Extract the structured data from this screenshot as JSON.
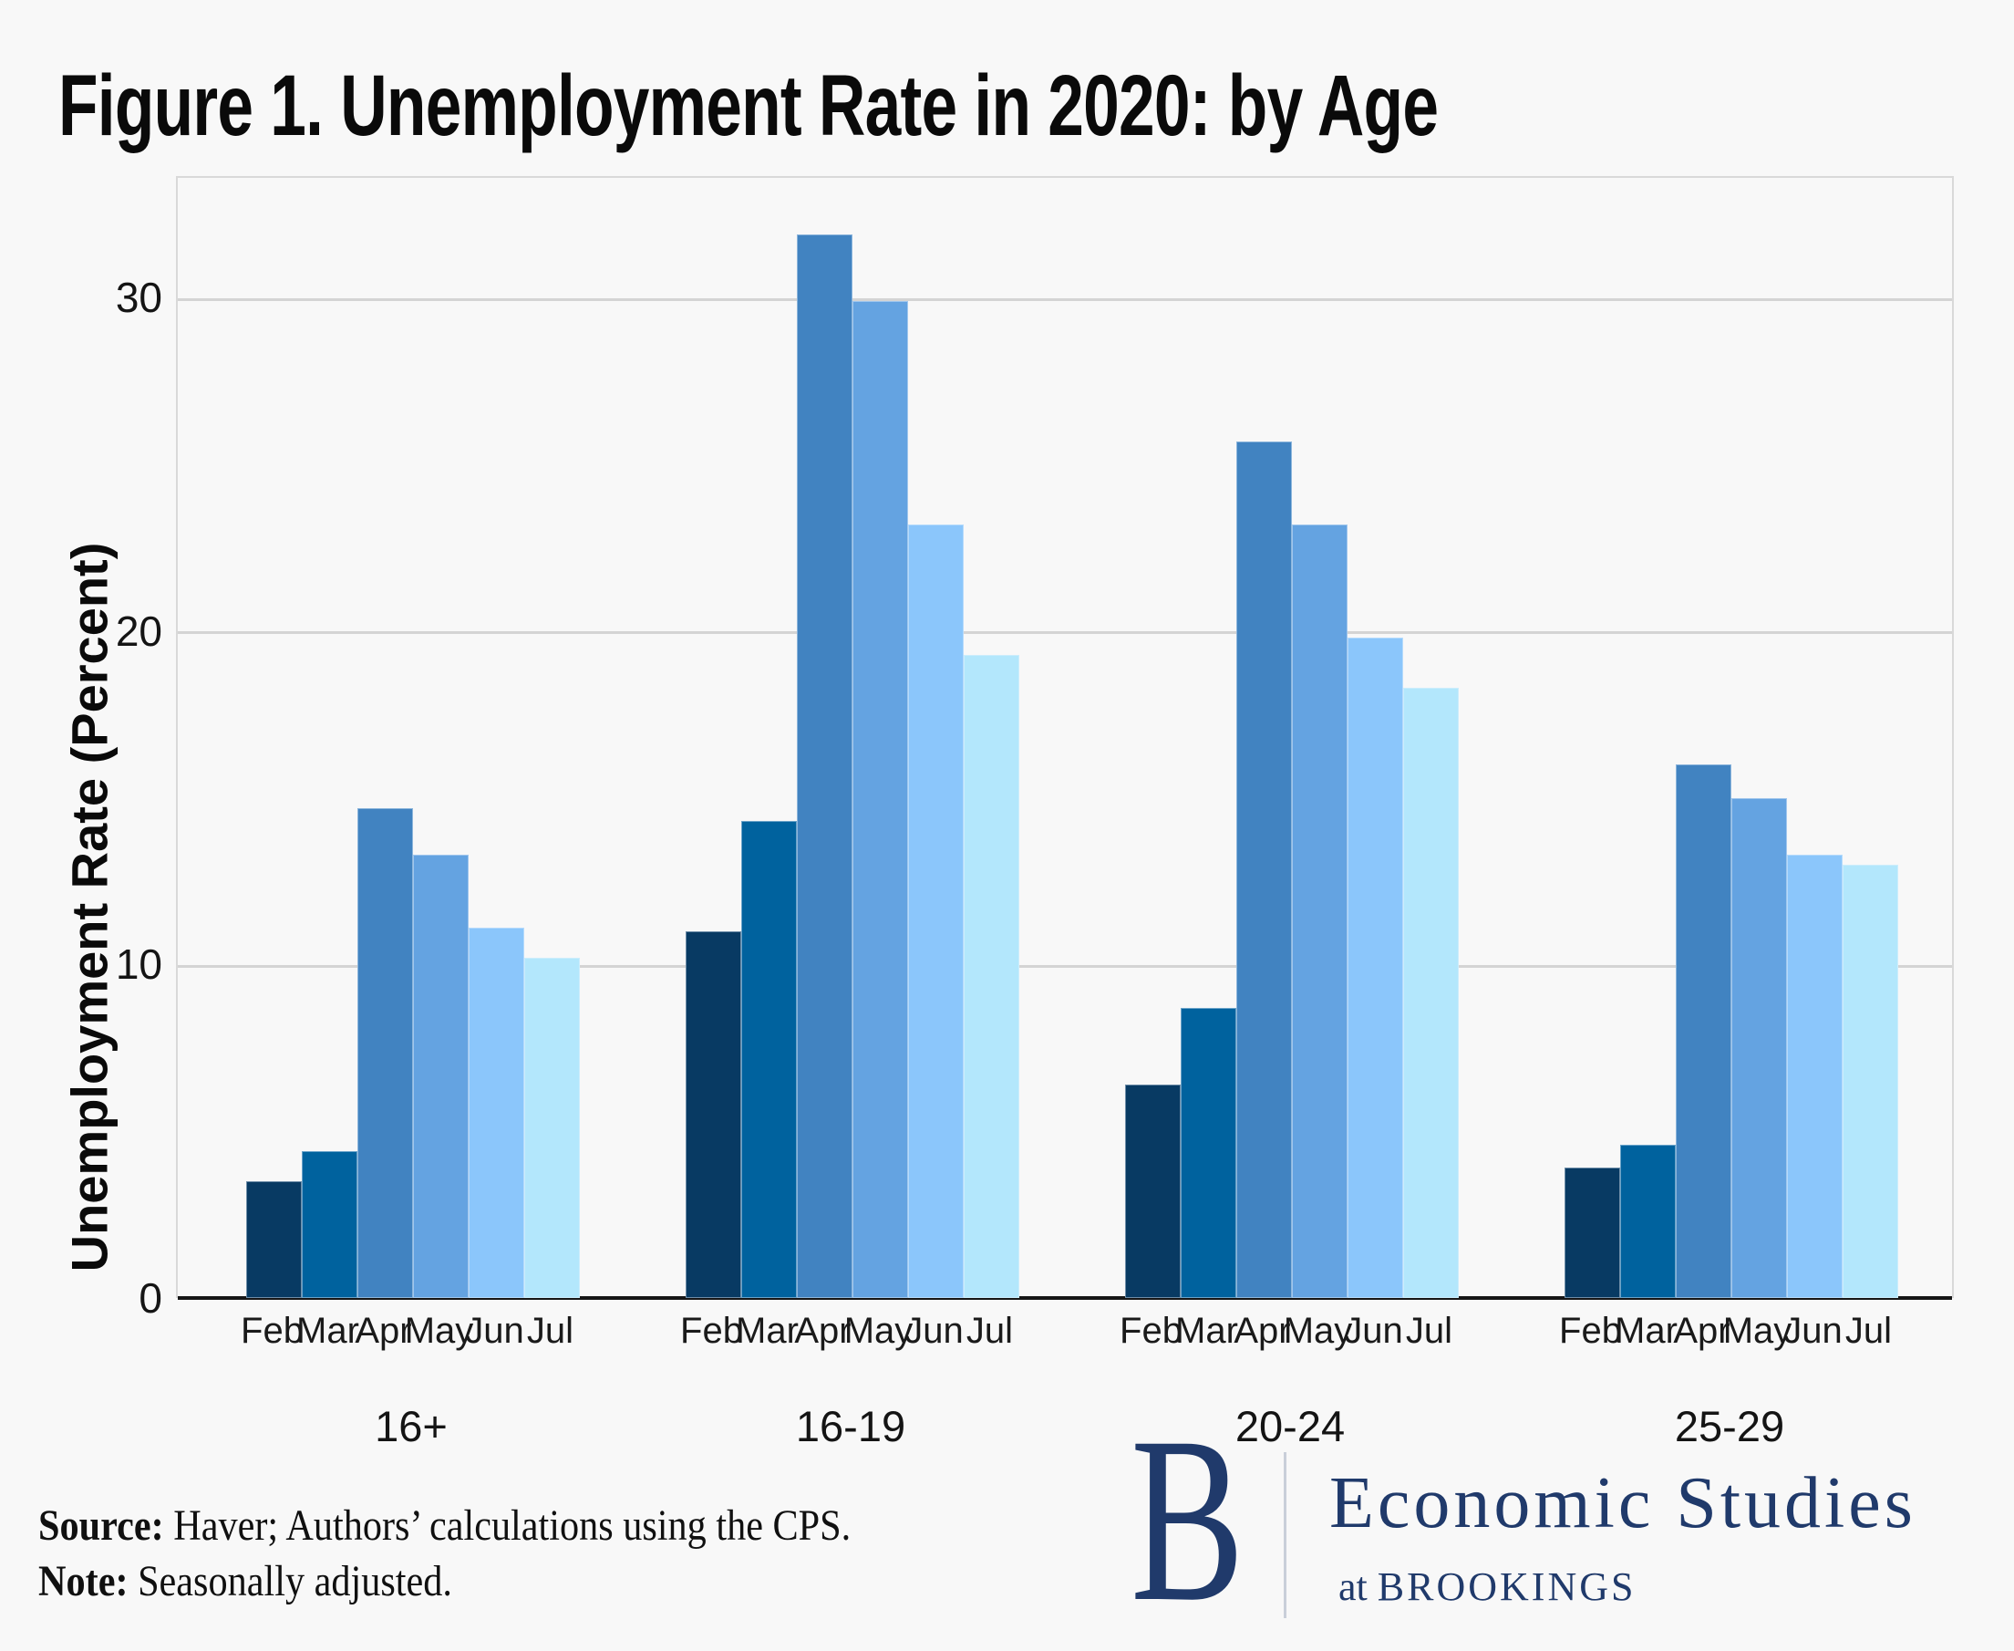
{
  "figure": {
    "title": "Figure 1. Unemployment Rate in 2020: by Age",
    "source_label": "Source:",
    "source_text": "  Haver; Authors’ calculations using the CPS.",
    "note_label": "Note:",
    "note_text": " Seasonally adjusted.",
    "logo": {
      "letter": "B",
      "line1": "Economic Studies",
      "line2_prefix": "at ",
      "line2": "BROOKINGS"
    }
  },
  "chart_data": {
    "type": "bar",
    "title": "Figure 1. Unemployment Rate in 2020: by Age",
    "xlabel": "",
    "ylabel": "Unemployment Rate (Percent)",
    "categories": [
      "16+",
      "16-19",
      "20-24",
      "25-29"
    ],
    "months": [
      "Feb",
      "Mar",
      "Apr",
      "May",
      "Jun",
      "Jul"
    ],
    "series": [
      {
        "name": "16+",
        "values": [
          3.5,
          4.4,
          14.7,
          13.3,
          11.1,
          10.2
        ]
      },
      {
        "name": "16-19",
        "values": [
          11.0,
          14.3,
          31.9,
          29.9,
          23.2,
          19.3
        ]
      },
      {
        "name": "20-24",
        "values": [
          6.4,
          8.7,
          25.7,
          23.2,
          19.8,
          18.3
        ]
      },
      {
        "name": "25-29",
        "values": [
          3.9,
          4.6,
          16.0,
          15.0,
          13.3,
          13.0
        ]
      }
    ],
    "month_colors": [
      "#083A63",
      "#00629E",
      "#4183C1",
      "#64A3E1",
      "#8BC6FB",
      "#B3E7FC"
    ],
    "yticks": [
      0,
      10,
      20,
      30
    ],
    "ylim": [
      0,
      33.65
    ],
    "grid": "horizontal-gridlines-at-10-20-30",
    "legend": "none",
    "background": "#f8f8f8",
    "baseline_color": "#161616",
    "gridline_color": "#d4d4d4",
    "brand_navy": "#203a6b"
  }
}
